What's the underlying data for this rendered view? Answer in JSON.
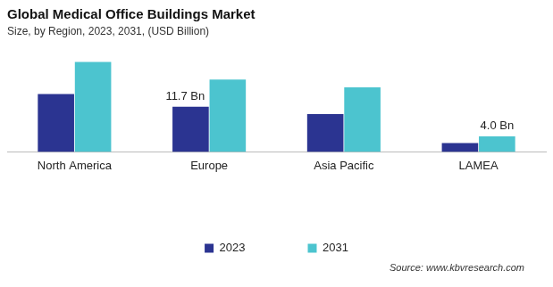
{
  "chart_data": {
    "type": "bar",
    "title": "Global Medical Office Buildings Market",
    "subtitle": "Size, by Region, 2023, 2031, (USD Billion)",
    "annotations": [
      "Source: www.kbvresearch.com"
    ],
    "categories": [
      "North America",
      "Europe",
      "Asia Pacific",
      "LAMEA"
    ],
    "series": [
      {
        "name": "2023",
        "color": "#2b3491",
        "values": [
          15.0,
          11.7,
          9.8,
          2.3
        ],
        "value_labels": [
          null,
          "11.7 Bn",
          null,
          null
        ]
      },
      {
        "name": "2031",
        "color": "#4cc4cf",
        "values": [
          23.3,
          18.7,
          16.7,
          4.0
        ],
        "value_labels": [
          null,
          null,
          null,
          "4.0 Bn"
        ]
      }
    ],
    "ylim": [
      0,
      24
    ],
    "grid": false,
    "legend": "bottom",
    "tick_labels": "x"
  }
}
